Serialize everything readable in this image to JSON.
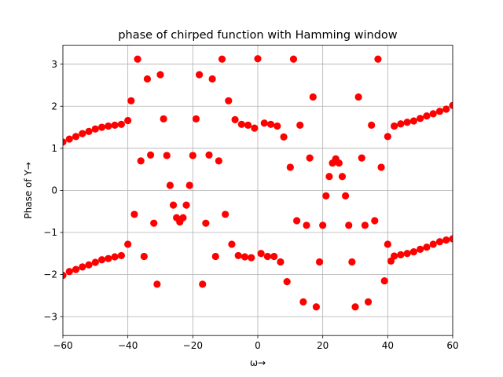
{
  "chart_data": {
    "type": "scatter",
    "title": "phase of chirped function with Hamming window",
    "xlabel": "ω→",
    "ylabel": "Phase of Y→",
    "xlim": [
      -60,
      60
    ],
    "ylim": [
      -3.45,
      3.45
    ],
    "xticks": [
      -60,
      -40,
      -20,
      0,
      20,
      40,
      60
    ],
    "yticks": [
      -3,
      -2,
      -1,
      0,
      1,
      2,
      3
    ],
    "xtick_labels": [
      "−60",
      "−40",
      "−20",
      "0",
      "20",
      "40",
      "60"
    ],
    "ytick_labels": [
      "−3",
      "−2",
      "−1",
      "0",
      "1",
      "2",
      "3"
    ],
    "grid": true,
    "legend": false,
    "marker_color": "#ff0000",
    "series": [
      {
        "x": [
          -60,
          -58,
          -56,
          -54,
          -52,
          -50,
          -48,
          -46,
          -44,
          -42,
          -40,
          -39,
          -38,
          -37,
          -36,
          -35,
          -34,
          -33,
          -32,
          -31,
          -30,
          -29,
          -28,
          -27,
          -26,
          -25,
          -24,
          -23,
          -22,
          -21,
          -20,
          -19,
          -18,
          -17,
          -16,
          -15,
          -14,
          -13,
          -12,
          -11,
          -10,
          -9,
          -8,
          -7,
          -6,
          -5,
          -4,
          -3,
          -2,
          -1,
          0,
          1,
          2,
          3,
          4,
          5,
          6,
          7,
          8,
          9,
          10,
          11,
          12,
          13,
          14,
          15,
          16,
          17,
          18,
          19,
          20,
          21,
          22,
          23,
          24,
          25,
          26,
          27,
          28,
          29,
          30,
          31,
          32,
          33,
          34,
          35,
          36,
          37,
          38,
          39,
          40,
          41,
          42,
          44,
          46,
          48,
          50,
          52,
          54,
          56,
          58,
          60,
          -60,
          -58,
          -56,
          -54,
          -52,
          -50,
          -48,
          -46,
          -44,
          -42,
          -40,
          40,
          42,
          44,
          46,
          48,
          50,
          52,
          54,
          56,
          58,
          60
        ],
        "y": [
          -2.02,
          -1.93,
          -1.88,
          -1.82,
          -1.77,
          -1.71,
          -1.65,
          -1.62,
          -1.58,
          -1.55,
          -1.28,
          2.13,
          -0.57,
          3.12,
          0.7,
          -1.57,
          2.65,
          0.84,
          -0.78,
          -2.23,
          2.75,
          1.7,
          0.83,
          0.12,
          -0.35,
          -0.65,
          -0.75,
          -0.65,
          -0.35,
          0.12,
          0.83,
          1.7,
          2.75,
          -2.23,
          -0.78,
          0.84,
          2.65,
          -1.57,
          0.7,
          3.12,
          -0.57,
          2.13,
          -1.28,
          1.68,
          -1.55,
          1.57,
          -1.58,
          1.55,
          -1.6,
          1.48,
          3.13,
          -1.5,
          1.6,
          -1.57,
          1.57,
          -1.57,
          1.53,
          -1.7,
          1.27,
          -2.17,
          0.55,
          3.12,
          -0.72,
          1.55,
          -2.65,
          -0.83,
          0.77,
          2.22,
          -2.77,
          -1.7,
          -0.83,
          -0.13,
          0.33,
          0.65,
          0.75,
          0.65,
          0.33,
          -0.13,
          -0.83,
          -1.7,
          -2.77,
          2.22,
          0.77,
          -0.83,
          -2.65,
          1.55,
          -0.72,
          3.12,
          0.55,
          -2.15,
          1.28,
          -1.68,
          1.53,
          1.58,
          1.62,
          1.65,
          1.71,
          1.77,
          1.82,
          1.88,
          1.93,
          2.02,
          1.15,
          1.22,
          1.28,
          1.35,
          1.4,
          1.46,
          1.5,
          1.53,
          1.55,
          1.57,
          1.66,
          -1.28,
          -1.56,
          -1.53,
          -1.5,
          -1.46,
          -1.4,
          -1.35,
          -1.28,
          -1.22,
          -1.18,
          -1.15
        ]
      }
    ]
  }
}
